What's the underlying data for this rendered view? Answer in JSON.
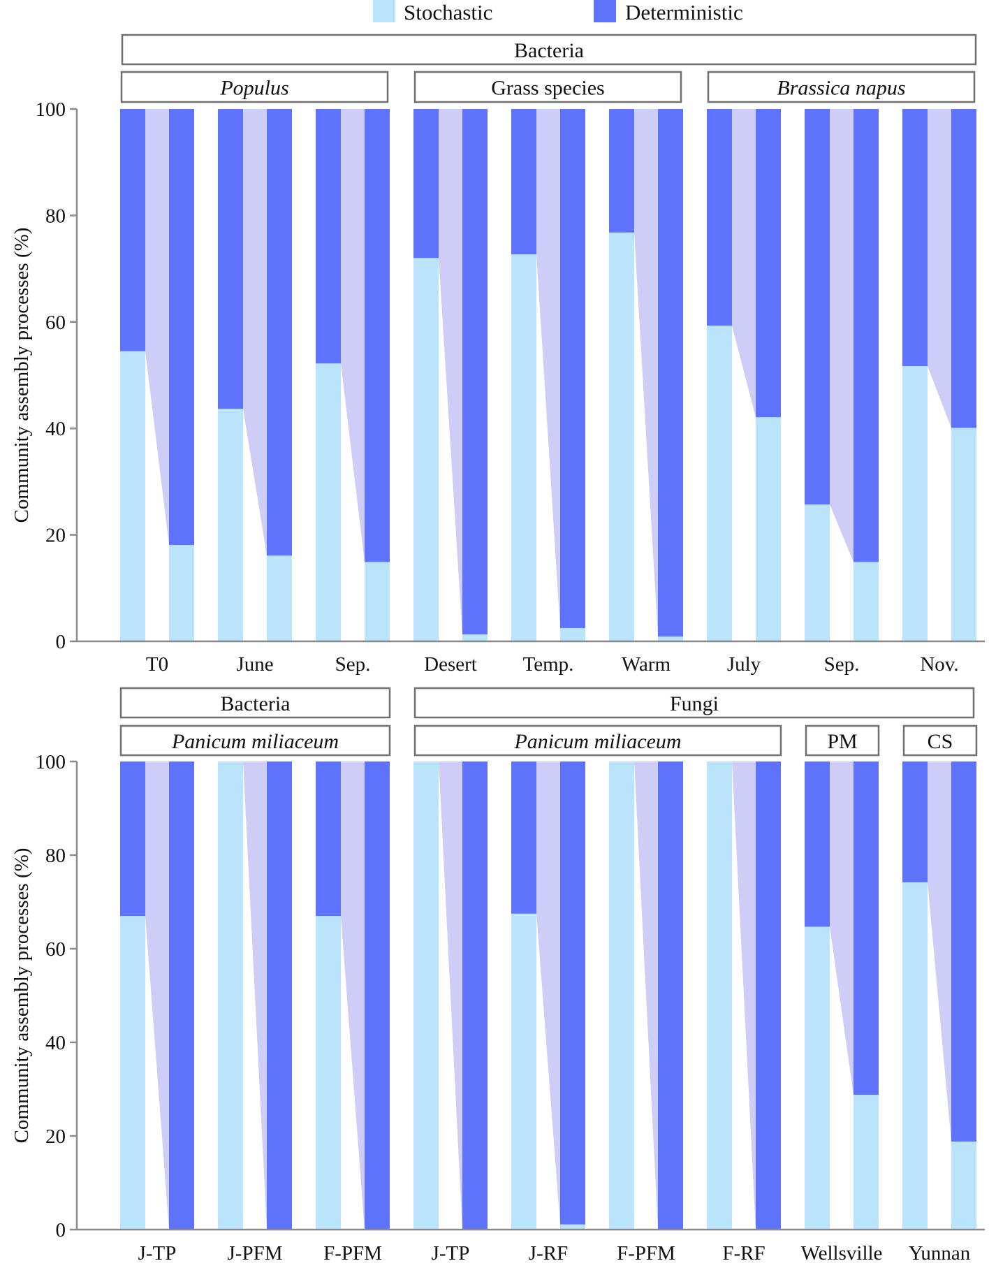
{
  "colors": {
    "stochastic": "#b9e4fb",
    "deterministic": "#5e73fb",
    "connector": "#cdcdf7"
  },
  "legend": [
    {
      "label": "Stochastic",
      "color_key": "stochastic"
    },
    {
      "label": "Deterministic",
      "color_key": "deterministic"
    }
  ],
  "chart_data": [
    {
      "type": "bar",
      "stacked": true,
      "panel": "top",
      "ylabel": "Community assembly processes (%)",
      "ylim": [
        0,
        100
      ],
      "yticks": [
        "0",
        "20",
        "40",
        "60",
        "80",
        "100"
      ],
      "header_top": [
        {
          "text": "Bacteria",
          "italic": false
        }
      ],
      "header_sub": [
        {
          "text": "Populus",
          "italic": true
        },
        {
          "text": "Grass species",
          "italic": false
        },
        {
          "text": "Brassica napus",
          "italic": true
        }
      ],
      "categories": [
        "T0",
        "June",
        "Sep.",
        "Desert",
        "Temp.",
        "Warm",
        "July",
        "Sep.",
        "Nov."
      ],
      "series": [
        {
          "name": "Stochastic (bar 1)",
          "values": [
            54.5,
            43.7,
            52.2,
            72.0,
            72.7,
            76.8,
            59.3,
            25.7,
            51.7
          ]
        },
        {
          "name": "Stochastic (bar 2)",
          "values": [
            18.1,
            16.1,
            14.9,
            1.3,
            2.5,
            0.9,
            42.1,
            14.9,
            40.1
          ]
        }
      ]
    },
    {
      "type": "bar",
      "stacked": true,
      "panel": "bottom",
      "ylabel": "Community assembly processes (%)",
      "ylim": [
        0,
        100
      ],
      "yticks": [
        "0",
        "20",
        "40",
        "60",
        "80",
        "100"
      ],
      "header_top": [
        {
          "text": "Bacteria",
          "italic": false
        },
        {
          "text": "Fungi",
          "italic": false
        }
      ],
      "header_sub": [
        {
          "text": "Panicum miliaceum",
          "italic": true
        },
        {
          "text": "Panicum miliaceum",
          "italic": true
        },
        {
          "text": "PM",
          "italic": false
        },
        {
          "text": "CS",
          "italic": false
        }
      ],
      "categories": [
        "J-TP",
        "J-PFM",
        "F-PFM",
        "J-TP",
        "J-RF",
        "F-PFM",
        "F-RF",
        "Wellsville",
        "Yunnan"
      ],
      "series": [
        {
          "name": "Stochastic (bar 1)",
          "values": [
            67.0,
            100.0,
            67.0,
            100.0,
            67.5,
            100.0,
            100.0,
            64.7,
            74.2
          ]
        },
        {
          "name": "Stochastic (bar 2)",
          "values": [
            0.0,
            0.0,
            0.0,
            0.0,
            1.1,
            0.0,
            0.0,
            28.8,
            18.8
          ]
        }
      ]
    }
  ]
}
